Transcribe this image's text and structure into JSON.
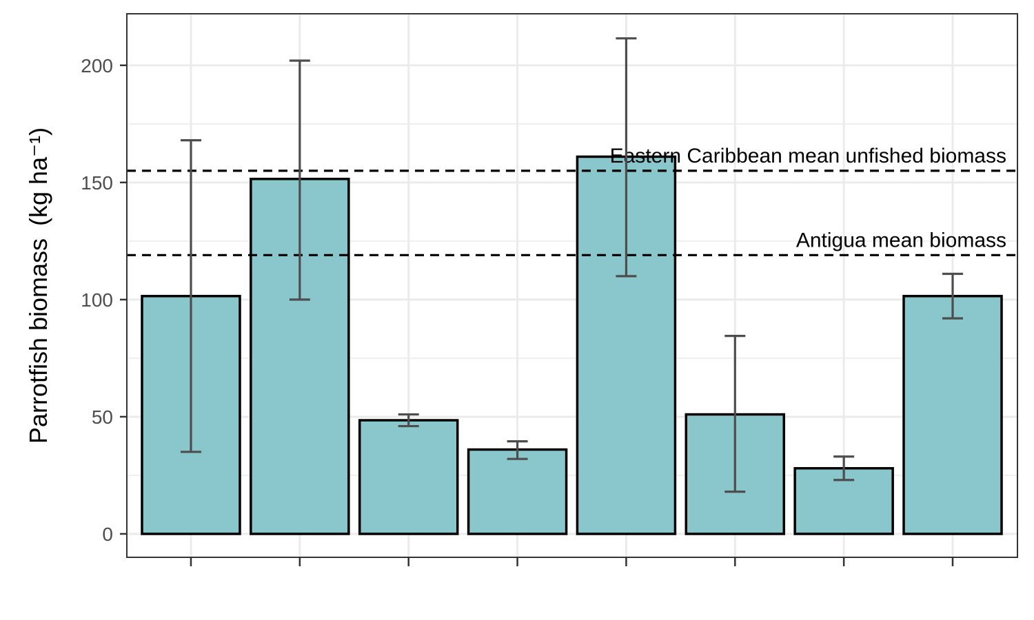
{
  "chart_data": {
    "type": "bar",
    "title": "",
    "xlabel": "",
    "ylabel": "Parrotfish biomass",
    "ylabel_unit": "(kg ha⁻¹)",
    "ylim": [
      -10,
      222
    ],
    "yticks": [
      0,
      50,
      100,
      150,
      200
    ],
    "grid": true,
    "categories": [
      "",
      "",
      "",
      "",
      "",
      "",
      "",
      ""
    ],
    "values": [
      101.5,
      151.5,
      48.5,
      36.0,
      161.0,
      51.0,
      28.0,
      101.5
    ],
    "error_low": [
      35,
      100,
      46,
      32,
      110,
      18,
      23,
      92
    ],
    "error_high": [
      168,
      202,
      51,
      39.5,
      211.5,
      84.5,
      33,
      111
    ],
    "reference_lines": [
      {
        "value": 155,
        "label": "Eastern Caribbean mean unfished biomass"
      },
      {
        "value": 119,
        "label": "Antigua mean biomass"
      }
    ],
    "colors": {
      "bar_fill": "#89c7cd",
      "bar_stroke": "#000000",
      "error_bar": "#4d4d4d",
      "grid": "#ebebeb",
      "panel_border": "#333333"
    }
  }
}
